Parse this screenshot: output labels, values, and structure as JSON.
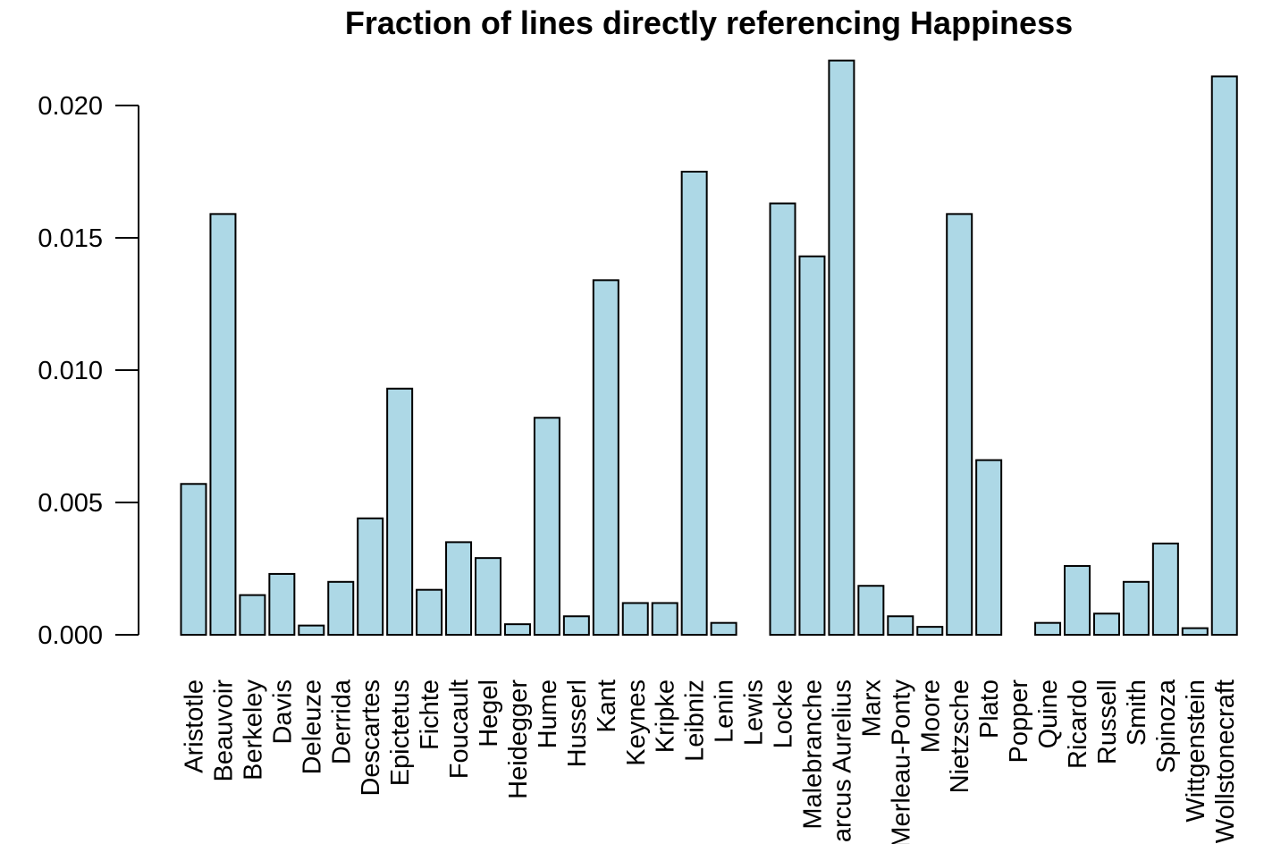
{
  "chart_data": {
    "type": "bar",
    "title": "Fraction of lines directly referencing Happiness",
    "xlabel": "",
    "ylabel": "",
    "ylim": [
      0,
      0.022
    ],
    "yticks": [
      0.0,
      0.005,
      0.01,
      0.015,
      0.02
    ],
    "ytick_labels": [
      "0.000",
      "0.005",
      "0.010",
      "0.015",
      "0.020"
    ],
    "grid": false,
    "legend": "none",
    "bar_color": "#add8e6",
    "categories": [
      "Aristotle",
      "Beauvoir",
      "Berkeley",
      "Davis",
      "Deleuze",
      "Derrida",
      "Descartes",
      "Epictetus",
      "Fichte",
      "Foucault",
      "Hegel",
      "Heidegger",
      "Hume",
      "Husserl",
      "Kant",
      "Keynes",
      "Kripke",
      "Leibniz",
      "Lenin",
      "Lewis",
      "Locke",
      "Malebranche",
      "Marcus Aurelius",
      "Marx",
      "Merleau-Ponty",
      "Moore",
      "Nietzsche",
      "Plato",
      "Popper",
      "Quine",
      "Ricardo",
      "Russell",
      "Smith",
      "Spinoza",
      "Wittgenstein",
      "Wollstonecraft"
    ],
    "values": [
      0.0057,
      0.0159,
      0.0015,
      0.0023,
      0.00035,
      0.002,
      0.0044,
      0.0093,
      0.0017,
      0.0035,
      0.0029,
      0.0004,
      0.0082,
      0.0007,
      0.0134,
      0.0012,
      0.0012,
      0.0175,
      0.00045,
      0.0,
      0.0163,
      0.0143,
      0.0217,
      0.00185,
      0.0007,
      0.0003,
      0.0159,
      0.0066,
      0.0,
      0.00045,
      0.0026,
      0.0008,
      0.002,
      0.00345,
      0.00025,
      0.0211
    ]
  }
}
